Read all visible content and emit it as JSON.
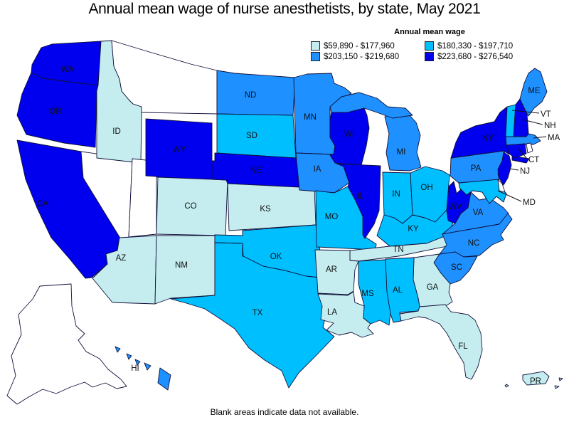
{
  "title": "Annual mean wage of nurse anesthetists, by state, May 2021",
  "footnote": "Blank areas indicate data not available.",
  "chart_data": {
    "type": "heatmap",
    "subtype": "choropleth-us-states",
    "title": "Annual mean wage of nurse anesthetists, by state, May 2021",
    "legend_title": "Annual mean wage",
    "legend_position": "top-right",
    "bins": [
      {
        "range": "$59,890 - $177,960",
        "color": "#c5edef",
        "states": [
          "ID",
          "CO",
          "KS",
          "AZ",
          "NM",
          "TN",
          "AR",
          "LA",
          "GA",
          "FL",
          "PR"
        ]
      },
      {
        "range": "$180,330 - $197,710",
        "color": "#00bfff",
        "states": [
          "SD",
          "MO",
          "OK",
          "TX",
          "IN",
          "OH",
          "KY",
          "MS",
          "AL",
          "VT",
          "MD"
        ]
      },
      {
        "range": "$203,150 - $219,680",
        "color": "#1e90ff",
        "states": [
          "ND",
          "MN",
          "IA",
          "MI",
          "PA",
          "VA",
          "NC",
          "SC",
          "ME",
          "MA",
          "HI"
        ]
      },
      {
        "range": "$223,680 - $276,540",
        "color": "#0000ee",
        "states": [
          "WA",
          "OR",
          "CA",
          "WY",
          "NE",
          "WI",
          "IL",
          "NY",
          "NH",
          "CT",
          "NJ",
          "WV"
        ]
      }
    ],
    "no_data_states": [
      "MT",
      "NV",
      "UT",
      "AK",
      "RI",
      "DE"
    ],
    "no_data_color": "#ffffff",
    "no_data_note": "Blank areas indicate data not available."
  }
}
